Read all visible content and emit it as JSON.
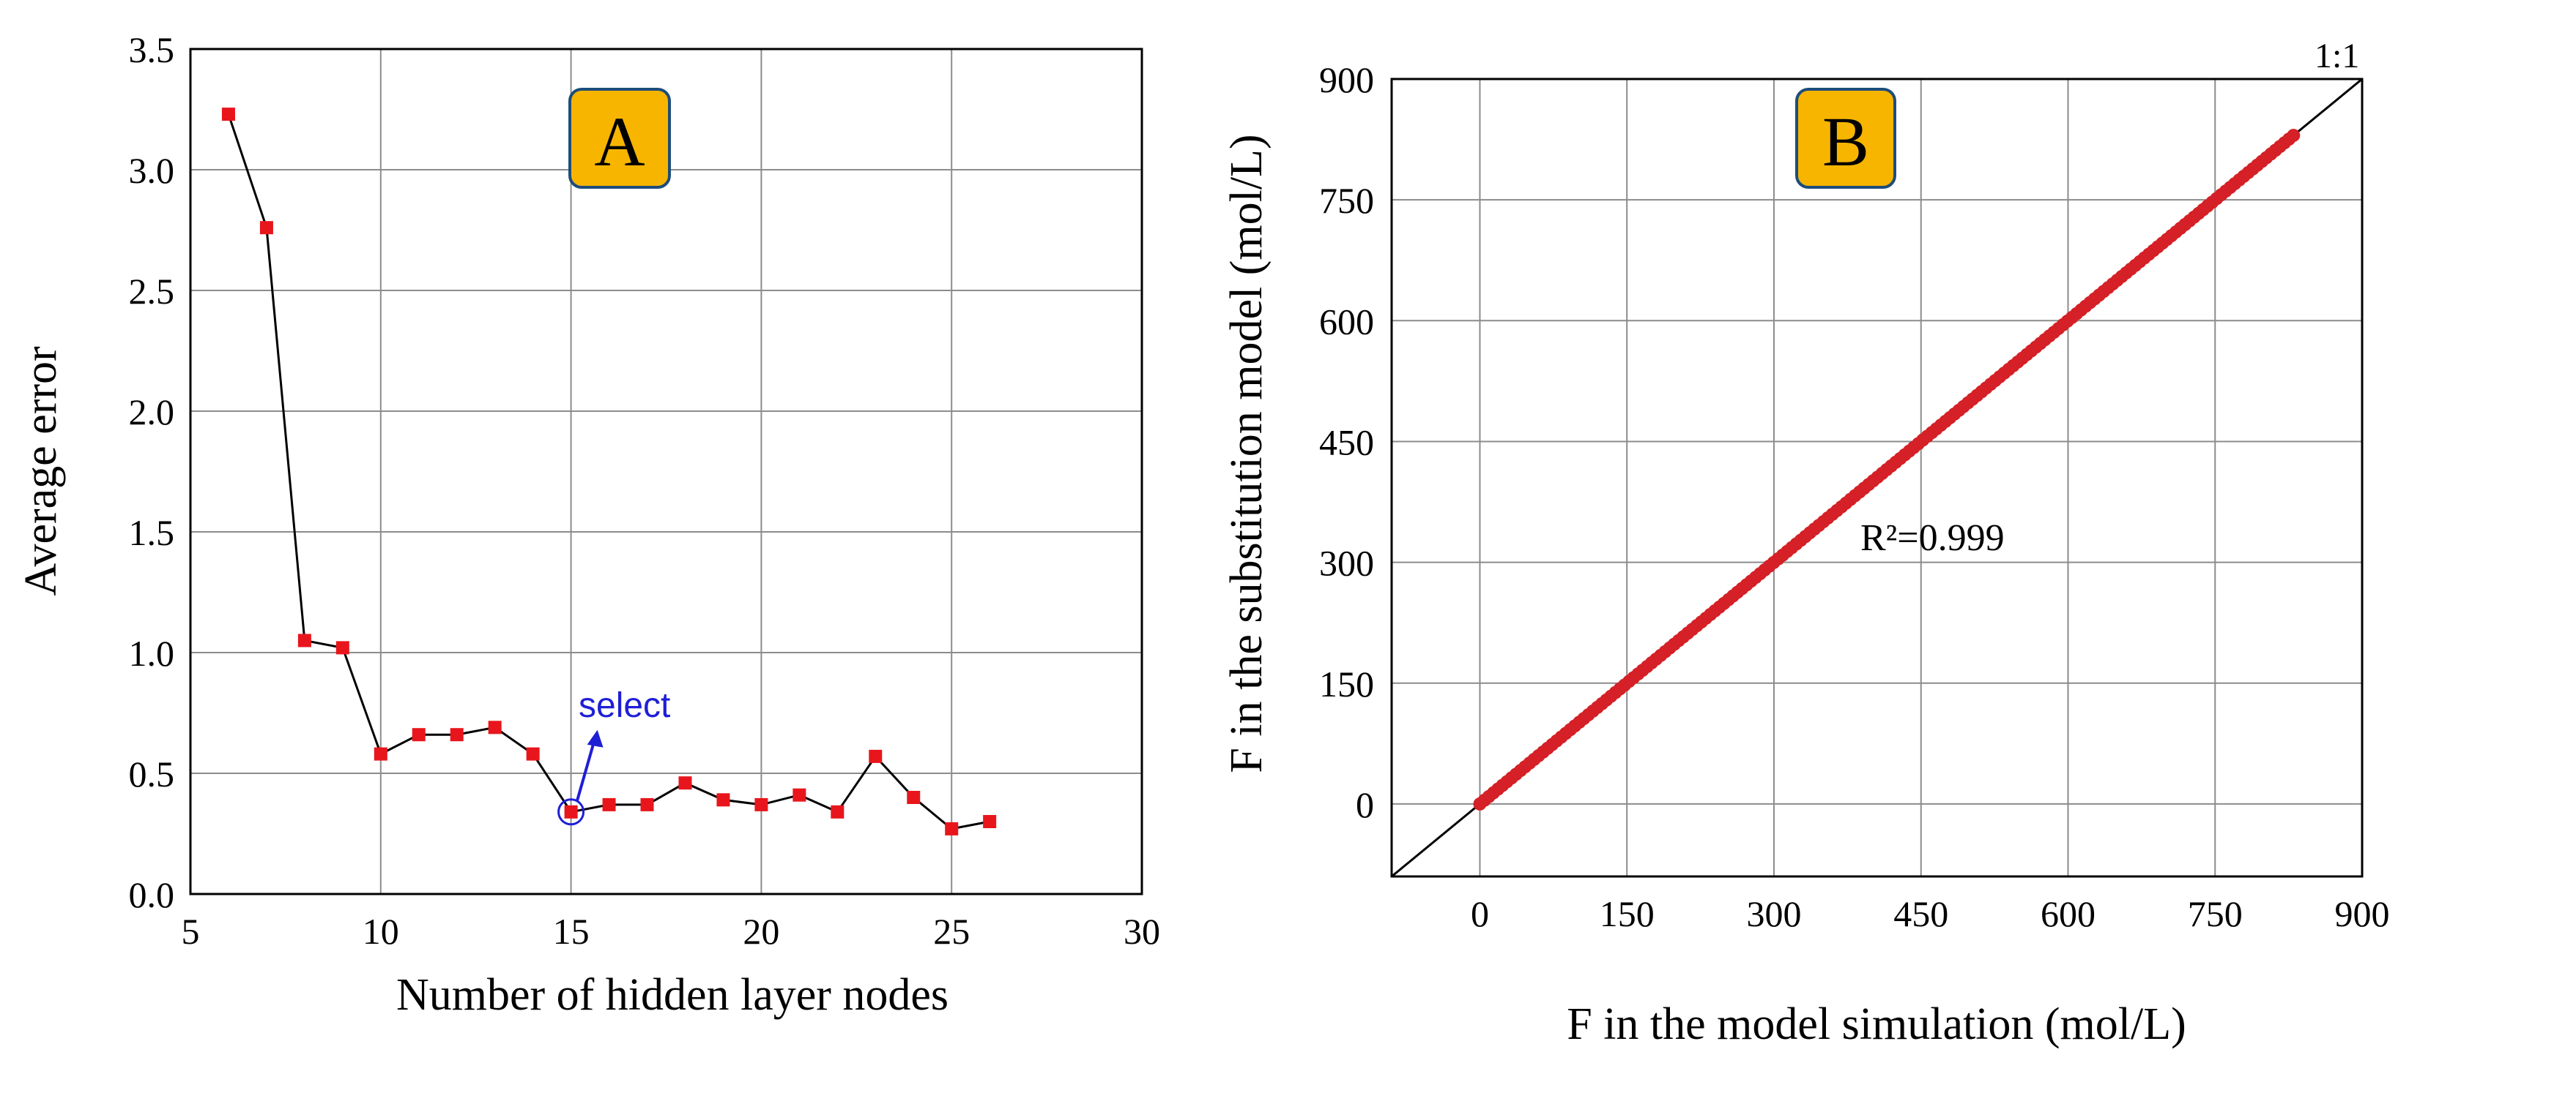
{
  "chart_data": [
    {
      "type": "line",
      "xlabel": "Number of hidden layer nodes",
      "ylabel": "Average error",
      "xlim": [
        5,
        30
      ],
      "ylim": [
        0,
        3.5
      ],
      "x_ticks": [
        "5",
        "10",
        "15",
        "20",
        "25",
        "30"
      ],
      "y_ticks": [
        "0.0",
        "0.5",
        "1.0",
        "1.5",
        "2.0",
        "2.5",
        "3.0",
        "3.5"
      ],
      "grid": true,
      "panel_label": "A",
      "series": [
        {
          "x": [
            6,
            7,
            8,
            9,
            10,
            11,
            12,
            13,
            14,
            15,
            16,
            17,
            18,
            19,
            20,
            21,
            22,
            23,
            24,
            25,
            26
          ],
          "y": [
            3.23,
            2.76,
            1.05,
            1.02,
            0.58,
            0.66,
            0.66,
            0.69,
            0.58,
            0.34,
            0.37,
            0.37,
            0.46,
            0.39,
            0.37,
            0.41,
            0.34,
            0.57,
            0.4,
            0.27,
            0.3
          ],
          "color": "#e8161c",
          "line_color": "#000000"
        }
      ],
      "annotation": {
        "text": "select",
        "x": 15,
        "y": 0.34,
        "color": "#1f1fd6"
      }
    },
    {
      "type": "scatter",
      "xlabel": "F in the model simulation (mol/L)",
      "ylabel": "F in the substitution model (mol/L)",
      "xlim": [
        -90,
        900
      ],
      "ylim": [
        -90,
        900
      ],
      "x_ticks": [
        "0",
        "150",
        "300",
        "450",
        "600",
        "750",
        "900"
      ],
      "y_ticks": [
        "0",
        "150",
        "300",
        "450",
        "600",
        "750",
        "900"
      ],
      "grid": true,
      "panel_label": "B",
      "reference_line": {
        "label": "1:1",
        "from": [
          -90,
          -90
        ],
        "to": [
          900,
          900
        ]
      },
      "r2_label": "R²=0.999",
      "series": [
        {
          "x_range": [
            0,
            830
          ],
          "relation": "y = x",
          "color": "#d42026"
        }
      ]
    }
  ],
  "colors": {
    "badge_fill": "#f7b500",
    "badge_border": "#1d4d7a",
    "grid": "#8c8c8c"
  }
}
